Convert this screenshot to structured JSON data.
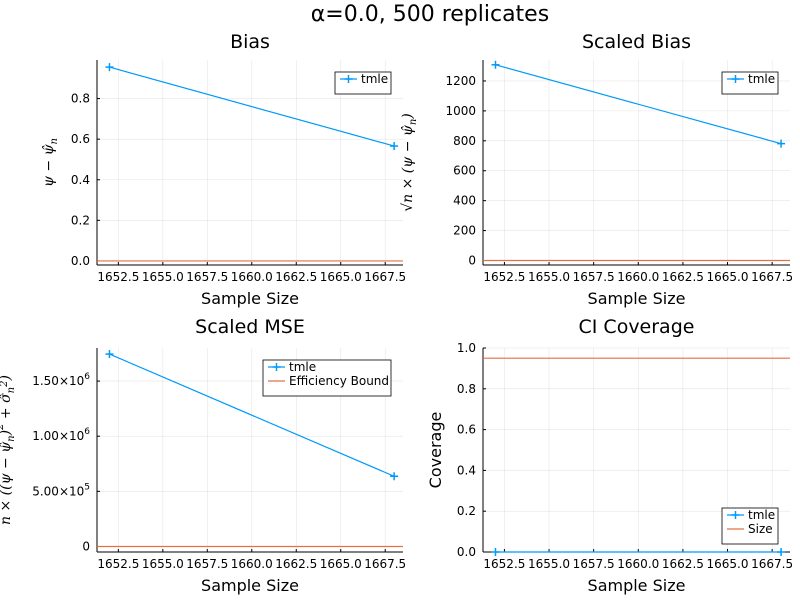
{
  "figure": {
    "title": "α=0.0, 500 replicates"
  },
  "chart_data": [
    {
      "type": "line",
      "title": "Bias",
      "xlabel": "Sample Size",
      "ylabel": "ψ − ψ̂ₙ",
      "xlim": [
        1651.3,
        1668.5
      ],
      "ylim": [
        -0.02,
        0.99
      ],
      "xticks": [
        1652.5,
        1655.0,
        1657.5,
        1660.0,
        1662.5,
        1665.0,
        1667.5
      ],
      "xtick_labels": [
        "1652.5",
        "1655.0",
        "1657.5",
        "1660.0",
        "1662.5",
        "1665.0",
        "1667.5"
      ],
      "yticks": [
        0.0,
        0.2,
        0.4,
        0.6,
        0.8
      ],
      "ytick_labels": [
        "0.0",
        "0.2",
        "0.4",
        "0.6",
        "0.8"
      ],
      "grid": true,
      "legend_position": "top-right",
      "series": [
        {
          "name": "tmle",
          "kind": "line-markers",
          "color": "#009AFA",
          "x": [
            1652,
            1668
          ],
          "y": [
            0.955,
            0.566
          ]
        },
        {
          "name": "",
          "kind": "hline",
          "color": "#E26F46",
          "y": 0.0
        }
      ]
    },
    {
      "type": "line",
      "title": "Scaled Bias",
      "xlabel": "Sample Size",
      "ylabel": "√n × (ψ − ψ̂ₙ)",
      "xlim": [
        1651.3,
        1668.5
      ],
      "ylim": [
        -30,
        1340
      ],
      "xticks": [
        1652.5,
        1655.0,
        1657.5,
        1660.0,
        1662.5,
        1665.0,
        1667.5
      ],
      "xtick_labels": [
        "1652.5",
        "1655.0",
        "1657.5",
        "1660.0",
        "1662.5",
        "1665.0",
        "1667.5"
      ],
      "yticks": [
        0,
        200,
        400,
        600,
        800,
        1000,
        1200
      ],
      "ytick_labels": [
        "0",
        "200",
        "400",
        "600",
        "800",
        "1000",
        "1200"
      ],
      "grid": true,
      "legend_position": "top-right",
      "series": [
        {
          "name": "tmle",
          "kind": "line-markers",
          "color": "#009AFA",
          "x": [
            1652,
            1668
          ],
          "y": [
            1308,
            781
          ]
        },
        {
          "name": "",
          "kind": "hline",
          "color": "#E26F46",
          "y": 0
        }
      ]
    },
    {
      "type": "line",
      "title": "Scaled MSE",
      "xlabel": "Sample Size",
      "ylabel": "n × ((ψ − ψ̂ₙ)² + σ̂ₙ²)",
      "xlim": [
        1651.3,
        1668.5
      ],
      "ylim": [
        -50000,
        1800000
      ],
      "xticks": [
        1652.5,
        1655.0,
        1657.5,
        1660.0,
        1662.5,
        1665.0,
        1667.5
      ],
      "xtick_labels": [
        "1652.5",
        "1655.0",
        "1657.5",
        "1660.0",
        "1662.5",
        "1665.0",
        "1667.5"
      ],
      "yticks": [
        0,
        500000,
        1000000,
        1500000
      ],
      "ytick_labels": [
        {
          "mantissa": "0",
          "exp": ""
        },
        {
          "mantissa": "5.00×10",
          "exp": "5"
        },
        {
          "mantissa": "1.00×10",
          "exp": "6"
        },
        {
          "mantissa": "1.50×10",
          "exp": "6"
        }
      ],
      "grid": true,
      "legend_position": "top-right",
      "series": [
        {
          "name": "tmle",
          "kind": "line-markers",
          "color": "#009AFA",
          "x": [
            1652,
            1668
          ],
          "y": [
            1745000,
            637000
          ]
        },
        {
          "name": "Efficiency Bound",
          "kind": "hline",
          "color": "#E26F46",
          "y": 0
        }
      ]
    },
    {
      "type": "line",
      "title": "CI Coverage",
      "xlabel": "Sample Size",
      "ylabel": "Coverage",
      "xlim": [
        1651.3,
        1668.5
      ],
      "ylim": [
        0.0,
        1.0
      ],
      "xticks": [
        1652.5,
        1655.0,
        1657.5,
        1660.0,
        1662.5,
        1665.0,
        1667.5
      ],
      "xtick_labels": [
        "1652.5",
        "1655.0",
        "1657.5",
        "1660.0",
        "1662.5",
        "1665.0",
        "1667.5"
      ],
      "yticks": [
        0.0,
        0.2,
        0.4,
        0.6,
        0.8,
        1.0
      ],
      "ytick_labels": [
        "0.0",
        "0.2",
        "0.4",
        "0.6",
        "0.8",
        "1.0"
      ],
      "grid": true,
      "legend_position": "bottom-right",
      "series": [
        {
          "name": "tmle",
          "kind": "line-markers",
          "color": "#009AFA",
          "x": [
            1652,
            1668
          ],
          "y": [
            0.0,
            0.0
          ]
        },
        {
          "name": "Size",
          "kind": "hline",
          "color": "#E26F46",
          "y": 0.95
        }
      ]
    }
  ]
}
